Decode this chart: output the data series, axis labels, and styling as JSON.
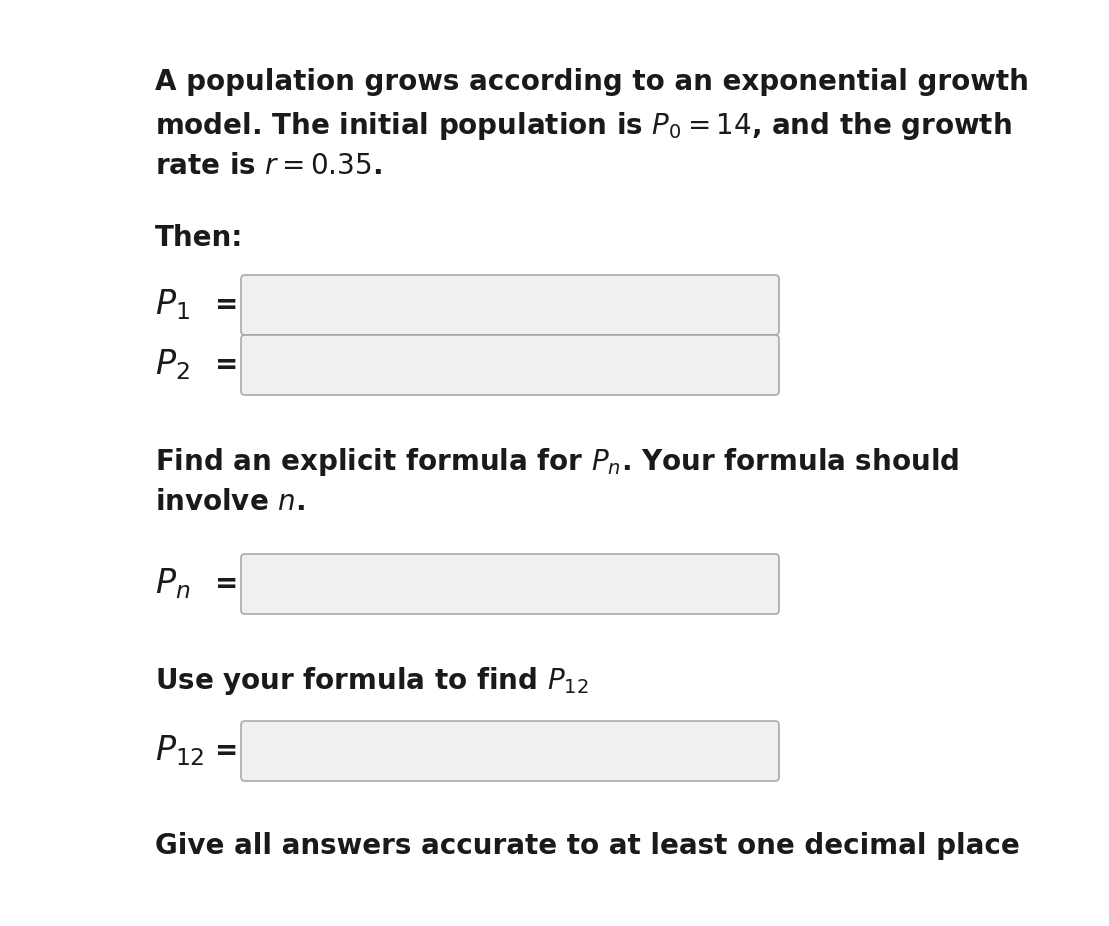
{
  "background_color": "#ffffff",
  "text_color": "#1a1a1a",
  "box_edge_color": "#aaaaaa",
  "box_fill_color": "#f0f0f0",
  "paragraph1_lines": [
    "A population grows according to an exponential growth",
    "model. The initial population is $P_0 = 14$, and the growth",
    "rate is $r = 0.35$."
  ],
  "then_label": "Then:",
  "p1_label": "$P_1$",
  "p2_label": "$P_2$",
  "pn_intro_lines": [
    "Find an explicit formula for $P_n$. Your formula should",
    "involve $n$."
  ],
  "pn_label": "$P_n$",
  "p12_intro": "Use your formula to find $P_{12}$",
  "p12_label": "$P_{12}$",
  "footer": "Give all answers accurate to at least one decimal place",
  "font_size_body": 20,
  "font_size_label": 24,
  "fig_width": 11.09,
  "fig_height": 9.26
}
